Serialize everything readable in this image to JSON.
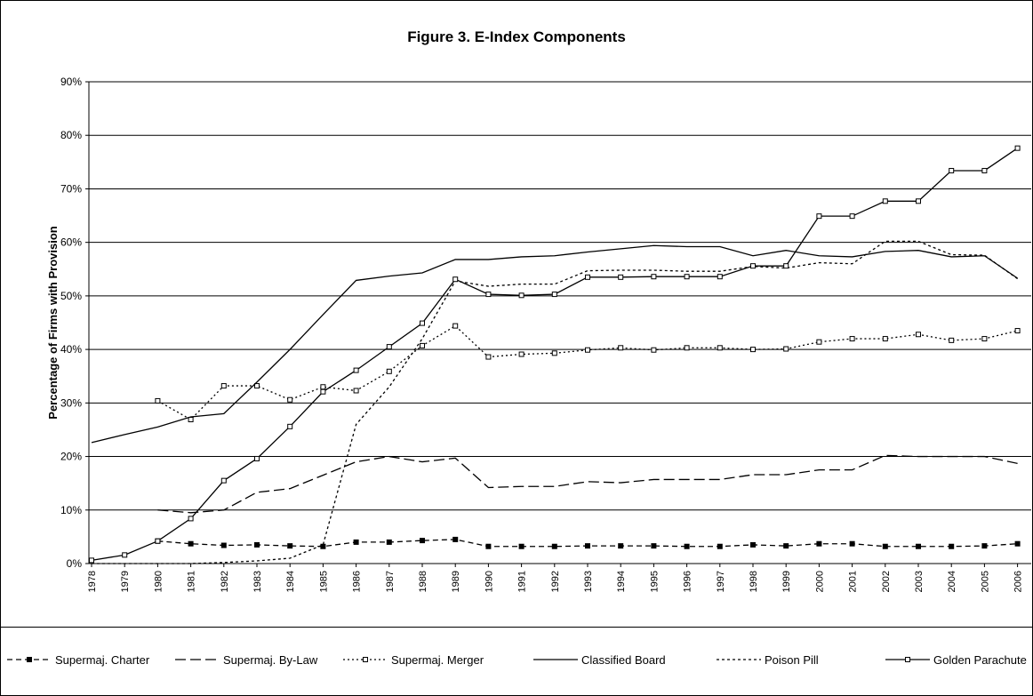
{
  "chart_data": {
    "type": "line",
    "title": "Figure 3. E-Index Components",
    "y_label": "Percentage of Firms with Provision",
    "categories": [
      "1978",
      "1979",
      "1980",
      "1981",
      "1982",
      "1983",
      "1984",
      "1985",
      "1986",
      "1987",
      "1988",
      "1989",
      "1990",
      "1991",
      "1992",
      "1993",
      "1994",
      "1995",
      "1996",
      "1997",
      "1998",
      "1999",
      "2000",
      "2001",
      "2002",
      "2003",
      "2004",
      "2005",
      "2006"
    ],
    "ylim": [
      0,
      90
    ],
    "yticks": [
      {
        "value": 0,
        "label": "0%"
      },
      {
        "value": 10,
        "label": "10%"
      },
      {
        "value": 20,
        "label": "20%"
      },
      {
        "value": 30,
        "label": "30%"
      },
      {
        "value": 40,
        "label": "40%"
      },
      {
        "value": 50,
        "label": "50%"
      },
      {
        "value": 60,
        "label": "60%"
      },
      {
        "value": 70,
        "label": "70%"
      },
      {
        "value": 80,
        "label": "80%"
      },
      {
        "value": 90,
        "label": "90%"
      }
    ],
    "grid": true,
    "legend": "bottom",
    "series": [
      {
        "name": "Supermaj. Charter",
        "color": "#000000",
        "dash": "6 4",
        "marker": "filled-square",
        "values": [
          null,
          null,
          4.2,
          3.7,
          3.4,
          3.5,
          3.3,
          3.2,
          4.0,
          4.0,
          4.3,
          4.5,
          3.2,
          3.2,
          3.2,
          3.3,
          3.3,
          3.3,
          3.2,
          3.2,
          3.5,
          3.3,
          3.7,
          3.7,
          3.2,
          3.2,
          3.2,
          3.3,
          3.7
        ]
      },
      {
        "name": "Supermaj. By-Law",
        "color": "#000000",
        "dash": "12 5",
        "marker": "none",
        "values": [
          null,
          null,
          10,
          9.5,
          10,
          13.3,
          14,
          16.5,
          19,
          20,
          19,
          19.7,
          14.2,
          14.4,
          14.4,
          15.3,
          15.1,
          15.7,
          15.7,
          15.7,
          16.6,
          16.6,
          17.5,
          17.5,
          20.2,
          20,
          20,
          20,
          18.7
        ]
      },
      {
        "name": "Supermaj. Merger",
        "color": "#000000",
        "dash": "2 3",
        "marker": "open-square",
        "values": [
          null,
          null,
          30.4,
          26.9,
          33.2,
          33.2,
          30.6,
          33,
          32.3,
          35.9,
          40.7,
          44.4,
          38.6,
          39.1,
          39.3,
          39.9,
          40.3,
          39.9,
          40.3,
          40.3,
          40,
          40.1,
          41.4,
          42,
          42,
          42.8,
          41.7,
          42,
          43.5
        ]
      },
      {
        "name": "Classified Board",
        "color": "#000000",
        "dash": "none",
        "marker": "none",
        "values": [
          22.6,
          24.1,
          25.5,
          27.4,
          28,
          33.9,
          40,
          46.5,
          52.9,
          53.7,
          54.3,
          56.8,
          56.8,
          57.3,
          57.5,
          58.2,
          58.8,
          59.4,
          59.2,
          59.2,
          57.5,
          58.5,
          57.5,
          57.3,
          58.3,
          58.5,
          57.3,
          57.5,
          53.3
        ]
      },
      {
        "name": "Poison Pill",
        "color": "#000000",
        "dash": "3 3",
        "marker": "none",
        "values": [
          0,
          0,
          0,
          0,
          0.2,
          0.5,
          1,
          3.5,
          26,
          33,
          42,
          52.8,
          51.8,
          52.2,
          52.2,
          54.7,
          54.8,
          54.8,
          54.6,
          54.6,
          55.5,
          55.2,
          56.2,
          56,
          60.2,
          60.2,
          57.7,
          57.6,
          53.2
        ]
      },
      {
        "name": "Golden Parachute",
        "color": "#000000",
        "dash": "none",
        "marker": "open-square",
        "values": [
          0.6,
          1.6,
          4.2,
          8.4,
          15.5,
          19.6,
          25.6,
          32.1,
          36.1,
          40.5,
          44.9,
          53.1,
          50.3,
          50.1,
          50.3,
          53.5,
          53.5,
          53.6,
          53.6,
          53.6,
          55.6,
          55.6,
          64.9,
          64.9,
          67.7,
          67.7,
          73.4,
          73.4,
          77.6
        ]
      }
    ]
  }
}
